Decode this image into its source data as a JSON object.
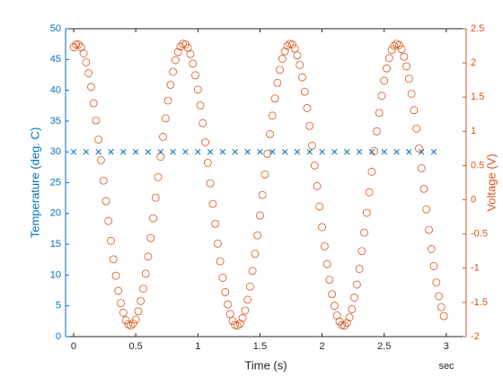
{
  "chart_data": {
    "type": "scatter",
    "xlabel": "Time (s)",
    "x_units": "sec",
    "ylabel": "Temperature (deg. C)",
    "y2label": "Voltage (V)",
    "xlim": [
      -0.065,
      3.16
    ],
    "xticks": [
      0,
      0.5,
      1,
      1.5,
      2,
      2.5,
      3
    ],
    "ylim": [
      0,
      50
    ],
    "yticks": [
      0,
      5,
      10,
      15,
      20,
      25,
      30,
      35,
      40,
      45,
      50
    ],
    "y2lim": [
      -2,
      2.5
    ],
    "y2ticks": [
      -2,
      -1.5,
      -1,
      -0.5,
      0,
      0.5,
      1,
      1.5,
      2,
      2.5
    ],
    "grid": false,
    "series": [
      {
        "color": "#0072BD",
        "marker": "x",
        "axis": "y",
        "x": [
          0,
          0.1,
          0.2,
          0.3,
          0.4,
          0.5,
          0.6,
          0.7,
          0.8,
          0.9,
          1,
          1.1,
          1.2,
          1.3,
          1.4,
          1.5,
          1.6,
          1.7,
          1.8,
          1.9,
          2,
          2.1,
          2.2,
          2.3,
          2.4,
          2.5,
          2.6,
          2.7,
          2.8,
          2.9
        ],
        "values": [
          30,
          30,
          30,
          30,
          30,
          30,
          30,
          30,
          30,
          30,
          30,
          30,
          30,
          30,
          30,
          30,
          30,
          30,
          30,
          30,
          30,
          30,
          30,
          30,
          30,
          30,
          30,
          30,
          30,
          30
        ]
      },
      {
        "color": "#D95319",
        "marker": "o",
        "axis": "y2",
        "x": [
          0,
          0.02,
          0.04,
          0.06,
          0.08,
          0.1,
          0.12,
          0.14,
          0.16,
          0.18,
          0.2,
          0.22,
          0.24,
          0.26,
          0.28,
          0.3,
          0.32,
          0.34,
          0.36,
          0.38,
          0.4,
          0.42,
          0.44,
          0.46,
          0.48,
          0.5,
          0.52,
          0.54,
          0.56,
          0.58,
          0.6,
          0.62,
          0.64,
          0.66,
          0.68,
          0.7,
          0.72,
          0.74,
          0.76,
          0.78,
          0.8,
          0.82,
          0.84,
          0.86,
          0.88,
          0.9,
          0.92,
          0.94,
          0.96,
          0.98,
          1,
          1.02,
          1.04,
          1.06,
          1.08,
          1.1,
          1.12,
          1.14,
          1.16,
          1.18,
          1.2,
          1.22,
          1.24,
          1.26,
          1.28,
          1.3,
          1.32,
          1.34,
          1.36,
          1.38,
          1.4,
          1.42,
          1.44,
          1.46,
          1.48,
          1.5,
          1.52,
          1.54,
          1.56,
          1.58,
          1.6,
          1.62,
          1.64,
          1.66,
          1.68,
          1.7,
          1.72,
          1.74,
          1.76,
          1.78,
          1.8,
          1.82,
          1.84,
          1.86,
          1.88,
          1.9,
          1.92,
          1.94,
          1.96,
          1.98,
          2,
          2.02,
          2.04,
          2.06,
          2.08,
          2.1,
          2.12,
          2.14,
          2.16,
          2.18,
          2.2,
          2.22,
          2.24,
          2.26,
          2.28,
          2.3,
          2.32,
          2.34,
          2.36,
          2.38,
          2.4,
          2.42,
          2.44,
          2.46,
          2.48,
          2.5,
          2.52,
          2.54,
          2.56,
          2.58,
          2.6,
          2.62,
          2.64,
          2.66,
          2.68,
          2.7,
          2.72,
          2.74,
          2.76,
          2.78,
          2.8,
          2.82,
          2.84,
          2.86,
          2.88,
          2.9,
          2.92,
          2.94,
          2.96,
          2.98
        ],
        "values": [
          2.23,
          2.27,
          2.27,
          2.23,
          2.14,
          2.01,
          1.85,
          1.65,
          1.41,
          1.16,
          0.88,
          0.58,
          0.28,
          -0.02,
          -0.31,
          -0.6,
          -0.87,
          -1.11,
          -1.33,
          -1.51,
          -1.65,
          -1.76,
          -1.82,
          -1.84,
          -1.81,
          -1.75,
          -1.63,
          -1.48,
          -1.3,
          -1.08,
          -0.83,
          -0.56,
          -0.27,
          0.03,
          0.33,
          0.63,
          0.92,
          1.19,
          1.45,
          1.68,
          1.87,
          2.04,
          2.16,
          2.24,
          2.28,
          2.27,
          2.22,
          2.13,
          1.99,
          1.82,
          1.61,
          1.38,
          1.12,
          0.84,
          0.54,
          0.24,
          -0.06,
          -0.35,
          -0.64,
          -0.9,
          -1.14,
          -1.35,
          -1.53,
          -1.67,
          -1.77,
          -1.83,
          -1.84,
          -1.81,
          -1.73,
          -1.62,
          -1.46,
          -1.27,
          -1.04,
          -0.79,
          -0.52,
          -0.23,
          0.07,
          0.37,
          0.67,
          0.96,
          1.23,
          1.48,
          1.71,
          1.9,
          2.06,
          2.17,
          2.25,
          2.28,
          2.27,
          2.21,
          2.11,
          1.97,
          1.79,
          1.58,
          1.34,
          1.08,
          0.79,
          0.5,
          0.2,
          -0.1,
          -0.4,
          -0.68,
          -0.94,
          -1.17,
          -1.38,
          -1.55,
          -1.69,
          -1.78,
          -1.83,
          -1.84,
          -1.8,
          -1.72,
          -1.6,
          -1.43,
          -1.24,
          -1.01,
          -0.75,
          -0.48,
          -0.19,
          0.11,
          0.41,
          0.71,
          1,
          1.27,
          1.52,
          1.74,
          1.92,
          2.07,
          2.19,
          2.25,
          2.28,
          2.26,
          2.2,
          2.09,
          1.95,
          1.77,
          1.55,
          1.31,
          1.04,
          0.75,
          0.46,
          0.16,
          -0.14,
          -0.44,
          -0.72,
          -0.97,
          -1.21,
          -1.41,
          -1.57,
          -1.7
        ]
      }
    ]
  }
}
